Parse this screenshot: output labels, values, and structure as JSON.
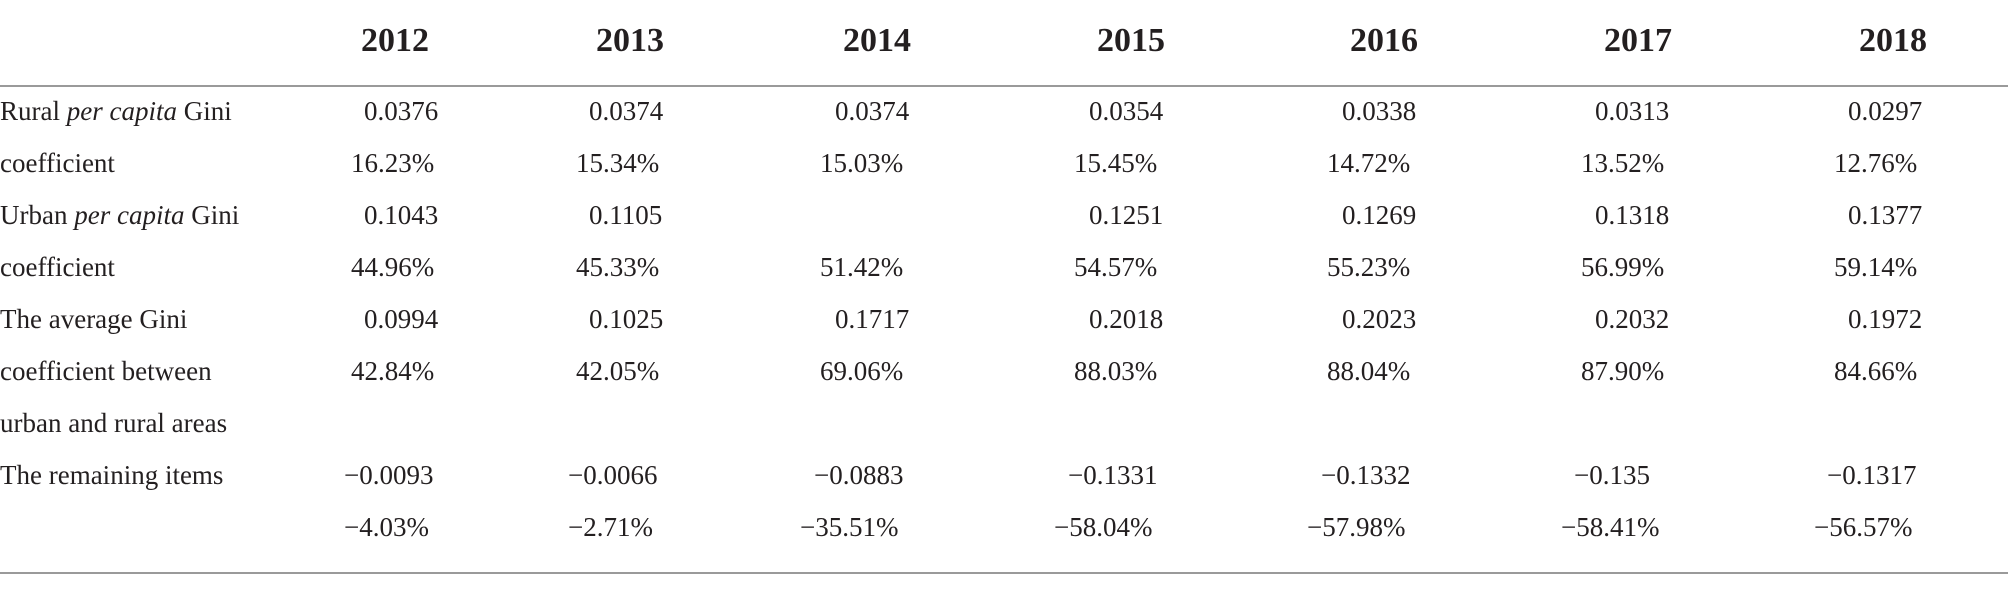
{
  "years": [
    "2012",
    "2013",
    "2014",
    "2015",
    "2016",
    "2017",
    "2018"
  ],
  "rows": [
    {
      "label_a": "Rural ",
      "label_i": "per capita",
      "label_b": " Gini",
      "values": [
        "0.0376",
        "0.0374",
        "0.0374",
        "0.0354",
        "0.0338",
        "0.0313",
        "0.0297"
      ]
    },
    {
      "label": "coefficient",
      "values": [
        "16.23%",
        "15.34%",
        "15.03%",
        "15.45%",
        "14.72%",
        "13.52%",
        "12.76%"
      ]
    },
    {
      "label_a": "Urban ",
      "label_i": "per capita",
      "label_b": " Gini",
      "values": [
        "0.1043",
        "0.1105",
        "",
        "0.1251",
        "0.1269",
        "0.1318",
        "0.1377"
      ]
    },
    {
      "label": "coefficient",
      "values": [
        "44.96%",
        "45.33%",
        "51.42%",
        "54.57%",
        "55.23%",
        "56.99%",
        "59.14%"
      ]
    },
    {
      "label": "The average Gini",
      "values": [
        "0.0994",
        "0.1025",
        "0.1717",
        "0.2018",
        "0.2023",
        "0.2032",
        "0.1972"
      ]
    },
    {
      "label": "coefficient between",
      "values": [
        "42.84%",
        "42.05%",
        "69.06%",
        "88.03%",
        "88.04%",
        "87.90%",
        "84.66%"
      ]
    },
    {
      "label": "urban and rural areas",
      "values": [
        "",
        "",
        "",
        "",
        "",
        "",
        ""
      ]
    },
    {
      "label": "The remaining items",
      "values": [
        "−0.0093",
        "−0.0066",
        "−0.0883",
        "−0.1331",
        "−0.1332",
        "−0.135",
        "−0.1317"
      ]
    },
    {
      "label": "",
      "values": [
        "−4.03%",
        "−2.71%",
        "−35.51%",
        "−58.04%",
        "−57.98%",
        "−58.41%",
        "−56.57%"
      ]
    }
  ]
}
